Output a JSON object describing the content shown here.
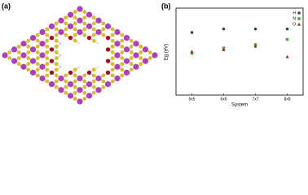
{
  "panel_labels": [
    "(a)",
    "(b)"
  ],
  "chart_data": {
    "type": "scatter",
    "xlabel": "System",
    "ylabel": "Eg (eV)",
    "categories": [
      "5x5",
      "6x6",
      "7x7",
      "8x8"
    ],
    "series": [
      {
        "name": "H",
        "color": "#2f4f4f",
        "marker": "circle",
        "values": [
          1.8,
          1.9,
          1.9,
          1.9
        ]
      },
      {
        "name": "N",
        "color": "#3cb043",
        "marker": "square",
        "values": [
          1.2,
          1.35,
          1.45,
          1.6
        ]
      },
      {
        "name": "O",
        "color": "#cc1111",
        "marker": "triangle",
        "values": [
          1.25,
          1.3,
          1.4,
          1.1
        ]
      }
    ],
    "ylim": [
      0,
      2.5
    ]
  }
}
